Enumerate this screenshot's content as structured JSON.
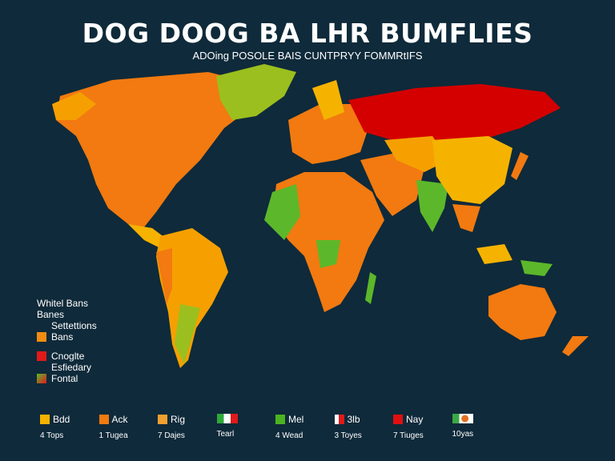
{
  "header": {
    "title": "DOG DOOG BA LHR  BUMFLIES",
    "subtitle": "ADOing POSOLE BAIS CUNTPRYY FOMMRtIFS"
  },
  "colors": {
    "background": "#0f2a3a",
    "yellow": "#f5b300",
    "orange": "#f27a10",
    "red": "#d40000",
    "green": "#5cb82a",
    "olive": "#9bbf1e"
  },
  "legend": {
    "title": "Whitel Bans",
    "subtitle": "Banes",
    "items": [
      {
        "heading": "Settettions",
        "label": "Bans",
        "color": "#f28c10"
      },
      {
        "heading": "",
        "label": "Cnoglte",
        "color": "#e01a1a"
      },
      {
        "heading": "Esfiedary",
        "label": "Fontal",
        "color": "#d9a020"
      }
    ]
  },
  "bottom_legend": [
    {
      "label": "Bdd",
      "count": "4 Tops",
      "color": "#f5b300"
    },
    {
      "label": "Ack",
      "count": "1 Tugea",
      "color": "#f27a10"
    },
    {
      "label": "Rig",
      "count": "7 Dajes",
      "color": "#f0a030"
    },
    {
      "label": "",
      "count": "Tearl",
      "color": "#2fa83a"
    },
    {
      "label": "Mel",
      "count": "4 Wead",
      "color": "#4cb320"
    },
    {
      "label": "3lb",
      "count": "3 Toyes",
      "color": "#e01a1a"
    },
    {
      "label": "Nay",
      "count": "7 Tiuges",
      "color": "#e01010"
    },
    {
      "label": "",
      "count": "10yas",
      "color": "#3aa845"
    }
  ]
}
